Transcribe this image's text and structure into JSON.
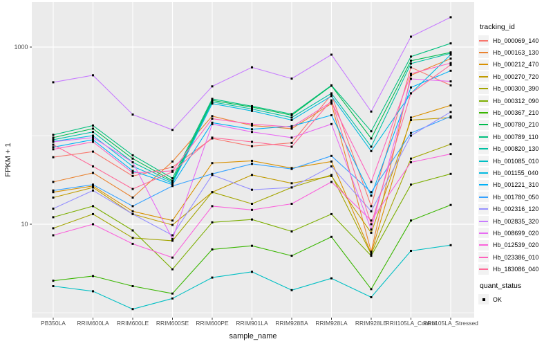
{
  "chart_data": {
    "type": "line",
    "title": "",
    "xlabel": "sample_name",
    "ylabel": "FPKM + 1",
    "y_scale": "log10",
    "y_tick_values": [
      1000,
      10
    ],
    "y_gridlines_major": [
      10,
      1000
    ],
    "y_gridlines_minor": [
      1,
      100
    ],
    "ylim_log": [
      -0.08,
      3.5
    ],
    "grid": true,
    "legend_position": "right",
    "panel_bg": "#EBEBEB",
    "grid_color": "#FFFFFF",
    "key_bg": "#F2F2F2",
    "tick_color": "#333333",
    "tick_label_color": "#4D4D4D",
    "point_color": "#000000",
    "point_shape": "square",
    "categories": [
      "PB350LA",
      "RRIM600LA",
      "RRIM600LE",
      "RRIM600SE",
      "RRIM600PE",
      "RRIM901LA",
      "RRIM928BA",
      "RRIM928LA",
      "RRIM928LE",
      "RRII105LA_Control",
      "RRII105LA_Stressed"
    ],
    "series": [
      {
        "name": "Hb_000069_140",
        "color": "#F8766D",
        "values": [
          57,
          66,
          35,
          44,
          93,
          76,
          83,
          290,
          16,
          590,
          370
        ]
      },
      {
        "name": "Hb_000163_130",
        "color": "#EA8331",
        "values": [
          30,
          38,
          20,
          51,
          166,
          130,
          120,
          230,
          4.9,
          480,
          740
        ]
      },
      {
        "name": "Hb_000212_470",
        "color": "#D89000",
        "values": [
          23,
          27,
          14,
          11,
          49,
          52,
          43,
          51,
          4.7,
          160,
          220
        ]
      },
      {
        "name": "Hb_000270_720",
        "color": "#C09B00",
        "values": [
          20,
          26,
          13,
          9.8,
          23,
          36,
          29,
          35,
          8,
          150,
          160
        ]
      },
      {
        "name": "Hb_000300_390",
        "color": "#A3A500",
        "values": [
          9,
          13,
          7,
          6.5,
          23,
          17,
          26,
          36,
          4.6,
          55,
          80
        ]
      },
      {
        "name": "Hb_000312_090",
        "color": "#7CAE00",
        "values": [
          12,
          16,
          8.5,
          3.1,
          10.5,
          11.3,
          8.3,
          13,
          4.4,
          28,
          37
        ]
      },
      {
        "name": "Hb_000367_210",
        "color": "#39B600",
        "values": [
          2.3,
          2.6,
          2.0,
          1.65,
          5.2,
          5.7,
          4.4,
          7.2,
          1.85,
          11,
          16.5
        ]
      },
      {
        "name": "Hb_000780_210",
        "color": "#00BB4E",
        "values": [
          95,
          120,
          55,
          31,
          250,
          210,
          170,
          365,
          93,
          700,
          870
        ]
      },
      {
        "name": "Hb_000789_110",
        "color": "#00BF7D",
        "values": [
          102,
          130,
          60,
          33,
          260,
          215,
          175,
          370,
          112,
          780,
          1100
        ]
      },
      {
        "name": "Hb_000820_130",
        "color": "#00C1A3",
        "values": [
          90,
          110,
          50,
          30,
          240,
          200,
          160,
          300,
          75,
          650,
          850
        ]
      },
      {
        "name": "Hb_001085_010",
        "color": "#00BFC4",
        "values": [
          2.0,
          1.75,
          1.1,
          1.45,
          2.5,
          2.9,
          1.8,
          2.45,
          1.5,
          5.0,
          5.8
        ]
      },
      {
        "name": "Hb_001155_040",
        "color": "#00BAE0",
        "values": [
          86,
          100,
          45,
          29,
          230,
          190,
          150,
          280,
          67,
          300,
          820
        ]
      },
      {
        "name": "Hb_001221_310",
        "color": "#00B0F6",
        "values": [
          74,
          90,
          40,
          28,
          140,
          118,
          128,
          170,
          21,
          350,
          540
        ]
      },
      {
        "name": "Hb_001780_050",
        "color": "#35A2FF",
        "values": [
          24,
          28,
          16,
          27,
          37,
          48,
          42,
          59,
          23,
          107,
          165
        ]
      },
      {
        "name": "Hb_002316_120",
        "color": "#9590FF",
        "values": [
          15,
          24,
          13,
          7.5,
          36,
          24.5,
          26,
          45,
          14,
          100,
          185
        ]
      },
      {
        "name": "Hb_002835_320",
        "color": "#C77CFF",
        "values": [
          400,
          480,
          173,
          116,
          360,
          590,
          440,
          820,
          187,
          1310,
          2170
        ]
      },
      {
        "name": "Hb_008699_020",
        "color": "#E76BF3",
        "values": [
          85,
          95,
          50,
          6.8,
          135,
          110,
          95,
          135,
          8.7,
          437,
          410
        ]
      },
      {
        "name": "Hb_012539_020",
        "color": "#FA62DB",
        "values": [
          7.5,
          10,
          6,
          4.2,
          16,
          14.5,
          17,
          30,
          11,
          50,
          62
        ]
      },
      {
        "name": "Hb_023386_010",
        "color": "#FF62BC",
        "values": [
          70,
          85,
          38,
          40,
          155,
          135,
          125,
          240,
          30,
          500,
          660
        ]
      },
      {
        "name": "Hb_183086_040",
        "color": "#FF6A98",
        "values": [
          79,
          45,
          25,
          39,
          95,
          85,
          75,
          250,
          10,
          300,
          630
        ]
      }
    ],
    "legend": {
      "tracking_title": "tracking_id",
      "quant_title": "quant_status",
      "quant_items": [
        {
          "label": "OK",
          "symbol": "black-square"
        }
      ]
    }
  }
}
